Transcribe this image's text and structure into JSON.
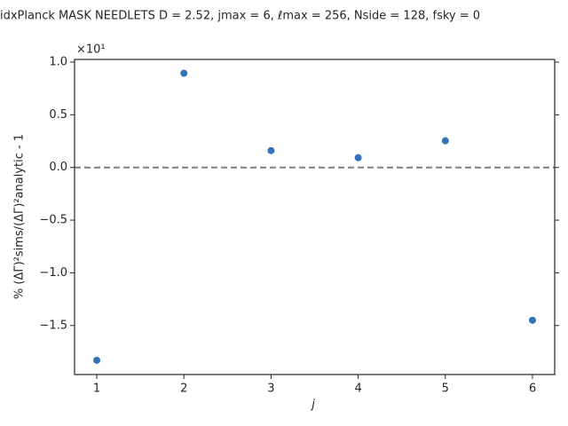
{
  "chart_data": {
    "type": "scatter",
    "title": "idxPlanck MASK NEEDLETS D = 2.52,  jmax = 6,  ℓmax = 256,  Nside = 128, fsky = 0",
    "x_label": "j",
    "y_label": "% (ΔΓ)²sims/(ΔΓ)²analytic - 1",
    "y_offset_label": "×10¹",
    "x": [
      1,
      2,
      3,
      4,
      5,
      6
    ],
    "series": [
      {
        "color": "#3274b5",
        "values": [
          -1.83,
          0.894,
          0.16,
          0.093,
          0.253,
          -1.45
        ]
      }
    ],
    "reference_line": 0,
    "xlim": [
      0.745,
      6.255
    ],
    "ylim": [
      -1.965,
      1.025
    ],
    "xticks": [
      1,
      2,
      3,
      4,
      5,
      6
    ],
    "yticks": [
      {
        "value": -1.5,
        "label": "−1.5"
      },
      {
        "value": -1.0,
        "label": "−1.0"
      },
      {
        "value": -0.5,
        "label": "−0.5"
      },
      {
        "value": 0.0,
        "label": "0.0"
      },
      {
        "value": 0.5,
        "label": "0.5"
      },
      {
        "value": 1.0,
        "label": "1.0"
      }
    ]
  }
}
